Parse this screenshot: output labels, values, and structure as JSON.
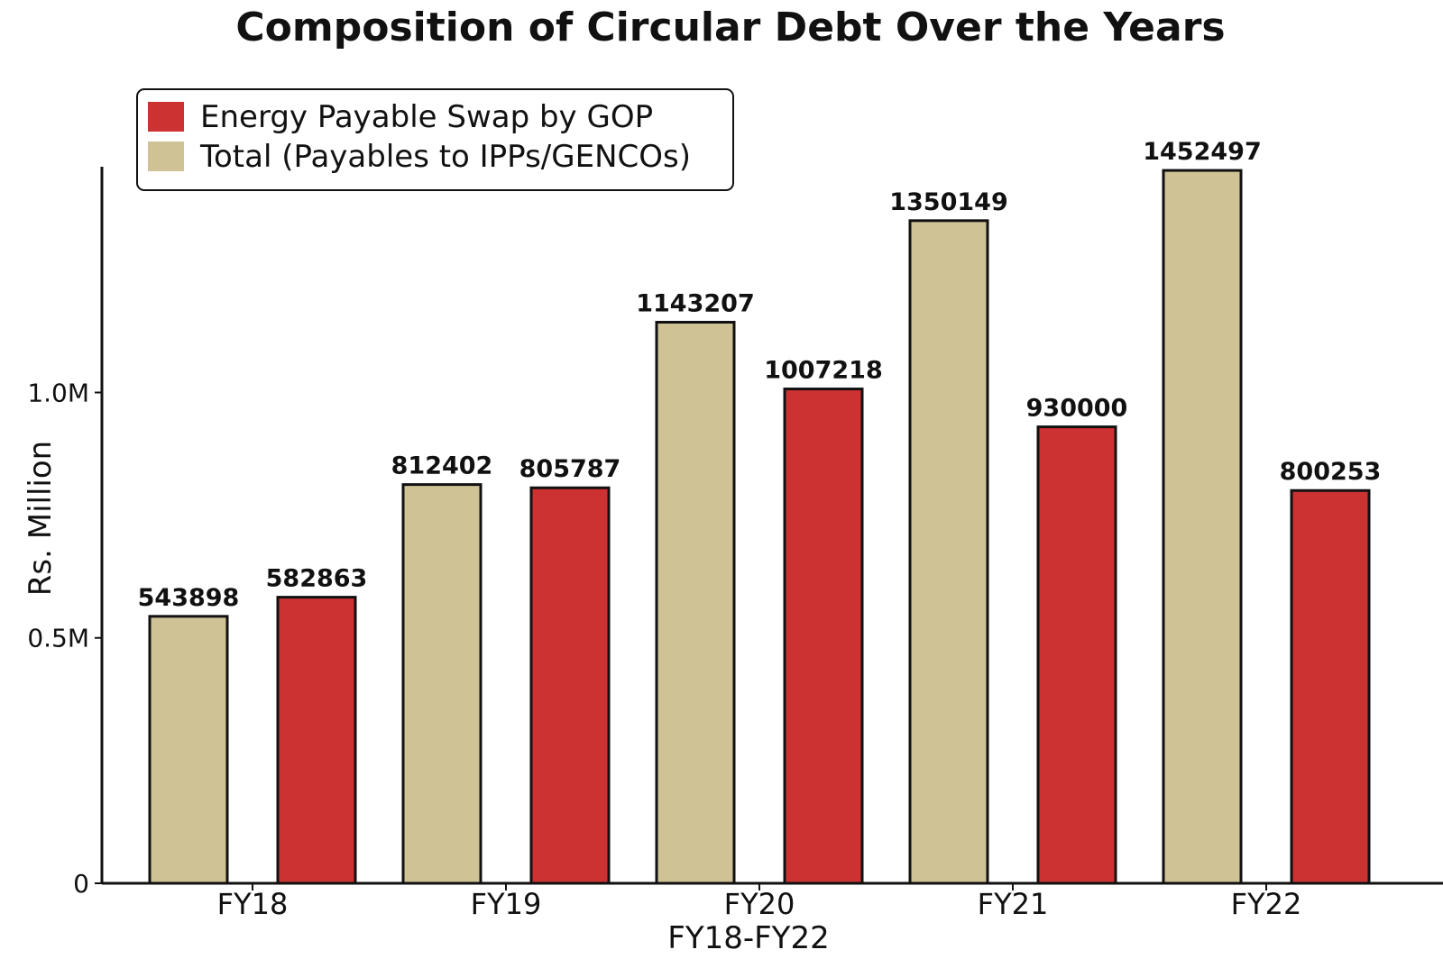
{
  "chart_data": {
    "type": "bar",
    "title": "Composition of Circular Debt Over the Years",
    "xlabel": "FY18-FY22",
    "ylabel": "Rs. Million",
    "categories": [
      "FY18",
      "FY19",
      "FY20",
      "FY21",
      "FY22"
    ],
    "ylim": [
      0,
      1460000
    ],
    "yticks": [
      {
        "value": 0,
        "label": "0"
      },
      {
        "value": 500000,
        "label": "0.5M"
      },
      {
        "value": 1000000,
        "label": "1.0M"
      }
    ],
    "legend_position": "top-left",
    "grid": false,
    "series": [
      {
        "name": "Total (Payables to IPPs/GENCOs)",
        "color": "#cfc395",
        "values": [
          543898,
          812402,
          1143207,
          1350149,
          1452497
        ],
        "labels": [
          "543898",
          "812402",
          "1143207",
          "1350149",
          "1452497"
        ]
      },
      {
        "name": "Energy Payable Swap by GOP",
        "color": "#cd3232",
        "values": [
          582863,
          805787,
          1007218,
          930000,
          800253
        ],
        "labels": [
          "582863",
          "805787",
          "1007218",
          "930000",
          "800253"
        ]
      }
    ],
    "legend_order": [
      1,
      0
    ]
  }
}
